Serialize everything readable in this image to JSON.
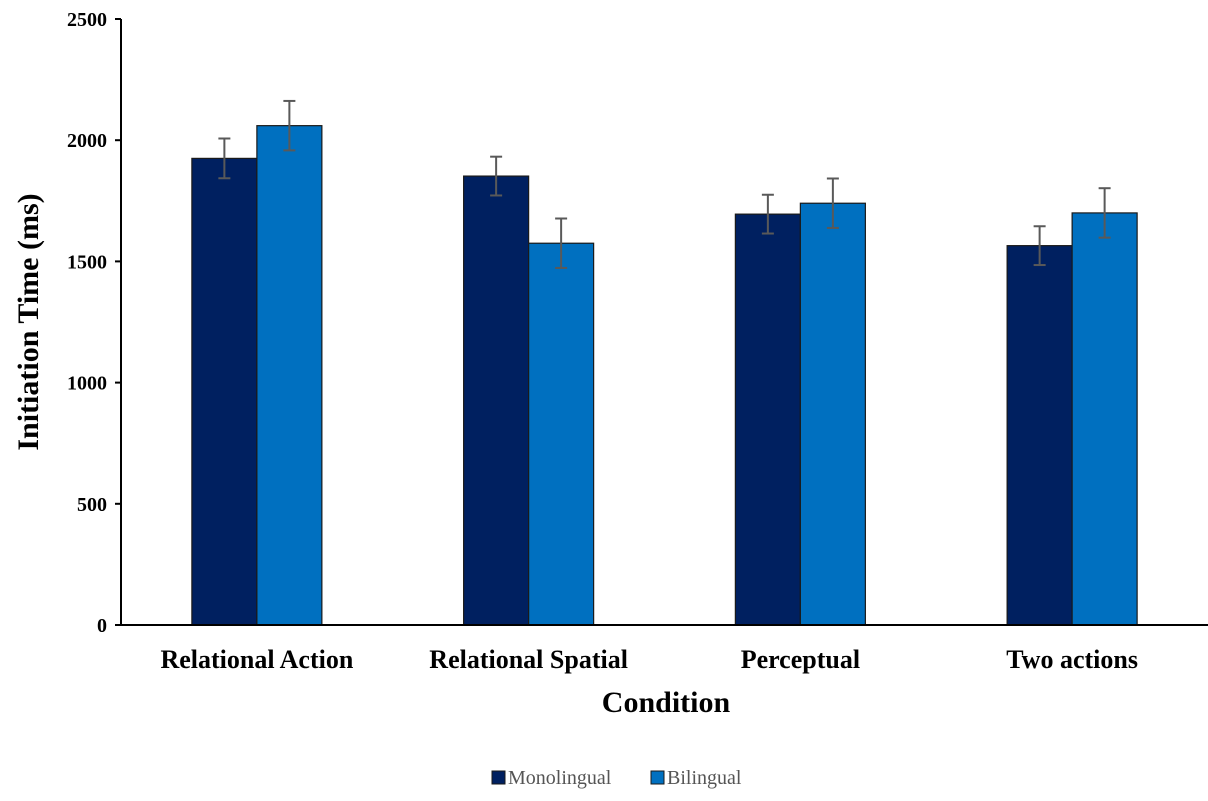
{
  "chart_data": {
    "type": "bar",
    "categories": [
      "Relational Action",
      "Relational Spatial",
      "Perceptual",
      "Two actions"
    ],
    "series": [
      {
        "name": "Monolingual",
        "color": "#002060",
        "values": [
          1925,
          1852,
          1695,
          1565
        ],
        "errors": [
          82,
          80,
          80,
          80
        ]
      },
      {
        "name": "Bilingual",
        "color": "#0070C0",
        "values": [
          2060,
          1575,
          1740,
          1700
        ],
        "errors": [
          102,
          102,
          102,
          102
        ]
      }
    ],
    "xlabel": "Condition",
    "ylabel": "Initiation Time (ms)",
    "ylim": [
      0,
      2500
    ],
    "yticks": [
      0,
      500,
      1000,
      1500,
      2000,
      2500
    ],
    "grid": false,
    "legend_position": "bottom"
  }
}
